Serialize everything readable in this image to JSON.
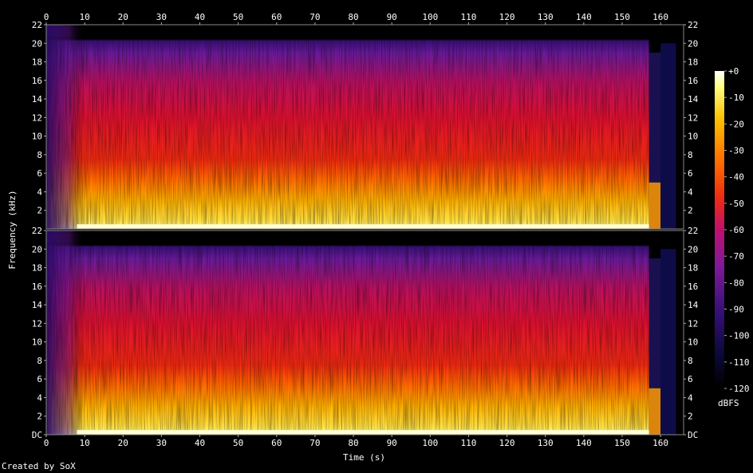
{
  "footer": "Created by SoX",
  "chart_data": {
    "type": "heatmap",
    "title": "",
    "xlabel": "Time (s)",
    "ylabel": "Frequency (kHz)",
    "xlim": [
      0,
      166
    ],
    "ylim": [
      0,
      22
    ],
    "x_ticks": [
      "0",
      "10",
      "20",
      "30",
      "40",
      "50",
      "60",
      "70",
      "80",
      "90",
      "100",
      "110",
      "120",
      "130",
      "140",
      "150",
      "160"
    ],
    "y_ticks": [
      "DC",
      "2",
      "4",
      "6",
      "8",
      "10",
      "12",
      "14",
      "16",
      "18",
      "20",
      "22"
    ],
    "y_ticks_values": [
      0,
      2,
      4,
      6,
      8,
      10,
      12,
      14,
      16,
      18,
      20,
      22
    ],
    "x_ticks_values": [
      0,
      10,
      20,
      30,
      40,
      50,
      60,
      70,
      80,
      90,
      100,
      110,
      120,
      130,
      140,
      150,
      160
    ],
    "channels": 2,
    "colorbar": {
      "label": "dBFS",
      "ticks": [
        "+0",
        "-10",
        "-20",
        "-30",
        "-40",
        "-50",
        "-60",
        "-70",
        "-80",
        "-90",
        "-100",
        "-110",
        "-120"
      ],
      "range": [
        -120,
        0
      ]
    },
    "audio_end_s": 157,
    "bandwidth_cutoff_khz": 20,
    "grid": false
  }
}
